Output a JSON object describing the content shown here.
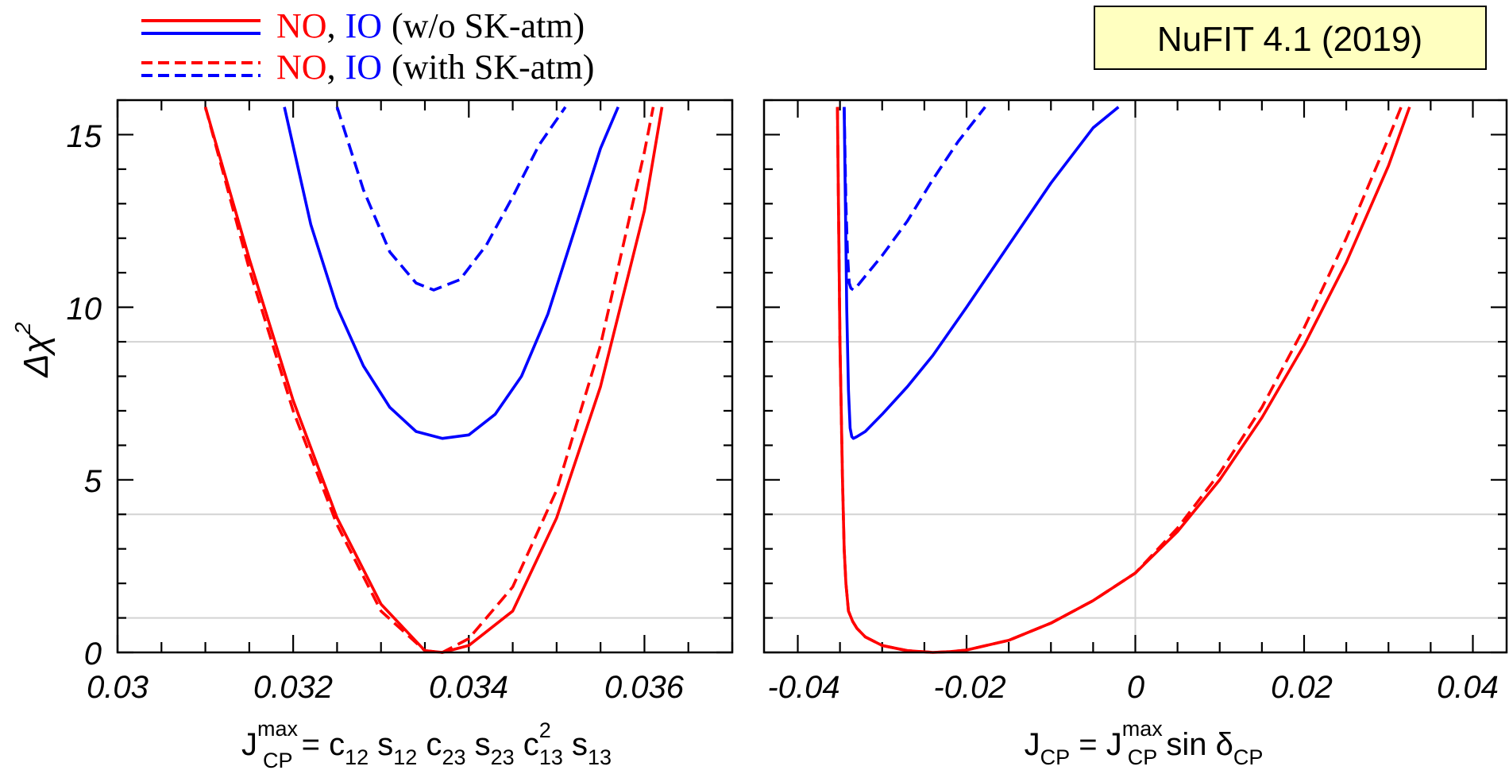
{
  "legend": {
    "row1": {
      "no": "NO",
      "comma": ",",
      "io": "IO",
      "suffix": "(w/o SK-atm)"
    },
    "row2": {
      "no": "NO",
      "comma": ",",
      "io": "IO",
      "suffix": "(with SK-atm)"
    }
  },
  "badge": {
    "label": "NuFIT 4.1 (2019)",
    "fill": "#ffffc0"
  },
  "colors": {
    "no": "#ff0000",
    "io": "#0000ff",
    "grid": "#d3d3d3"
  },
  "y_axis": {
    "label_main": "Δχ",
    "label_sup": "2",
    "ticks": [
      "0",
      "5",
      "10",
      "15"
    ]
  },
  "left_x_axis": {
    "ticks": [
      "0.03",
      "0.032",
      "0.034",
      "0.036"
    ],
    "label": {
      "J": "J",
      "sup": "max",
      "sub": "CP",
      "eq": " = c",
      "s1": "12",
      "p2": " s",
      "s2": "12",
      "p3": " c",
      "s3": "23",
      "p4": " s",
      "s4": "23",
      "p5": " c",
      "s5": "13",
      "sup5": "2",
      "p6": " s",
      "s6": "13"
    }
  },
  "right_x_axis": {
    "ticks": [
      "-0.04",
      "-0.02",
      "0",
      "0.02",
      "0.04"
    ],
    "label": {
      "J": "J",
      "sub1": "CP",
      "eq": " = J",
      "sup": "max",
      "sub2": "CP",
      "sin": " sin ",
      "delta": "δ",
      "sub3": "CP"
    }
  },
  "chart_data": [
    {
      "type": "line",
      "xlim": [
        0.03,
        0.037
      ],
      "ylim": [
        0,
        16
      ],
      "grid_y": [
        1,
        4,
        9
      ],
      "series": [
        {
          "style": "NO-solid",
          "x": [
            0.031,
            0.0315,
            0.032,
            0.0325,
            0.033,
            0.0335,
            0.0337,
            0.034,
            0.0345,
            0.035,
            0.0355,
            0.036,
            0.0362
          ],
          "y": [
            15.8,
            11.4,
            7.3,
            3.9,
            1.4,
            0.05,
            0.0,
            0.2,
            1.2,
            3.9,
            7.7,
            12.8,
            15.8
          ]
        },
        {
          "style": "NO-dashed",
          "x": [
            0.031,
            0.0315,
            0.032,
            0.0325,
            0.033,
            0.0335,
            0.0337,
            0.034,
            0.0345,
            0.035,
            0.0355,
            0.036,
            0.0361
          ],
          "y": [
            15.8,
            11.1,
            7.0,
            3.7,
            1.2,
            0.05,
            0.0,
            0.4,
            1.9,
            4.7,
            8.9,
            14.5,
            15.8
          ]
        },
        {
          "style": "IO-solid",
          "x": [
            0.0319,
            0.0322,
            0.0325,
            0.0328,
            0.0331,
            0.0334,
            0.0337,
            0.034,
            0.0343,
            0.0346,
            0.0349,
            0.0352,
            0.0355,
            0.0357
          ],
          "y": [
            15.8,
            12.4,
            10.0,
            8.3,
            7.1,
            6.4,
            6.2,
            6.3,
            6.9,
            8.0,
            9.8,
            12.2,
            14.6,
            15.8
          ]
        },
        {
          "style": "IO-dashed",
          "x": [
            0.0325,
            0.0328,
            0.0331,
            0.0334,
            0.0336,
            0.0339,
            0.0342,
            0.0345,
            0.0348,
            0.0351
          ],
          "y": [
            15.8,
            13.4,
            11.6,
            10.7,
            10.5,
            10.8,
            11.8,
            13.2,
            14.7,
            15.8
          ]
        }
      ]
    },
    {
      "type": "line",
      "xlim": [
        -0.044,
        0.044
      ],
      "ylim": [
        0,
        16
      ],
      "grid_y": [
        1,
        4,
        9
      ],
      "grid_x": [
        0
      ],
      "series": [
        {
          "style": "NO-solid",
          "x": [
            -0.0353,
            -0.035,
            -0.0347,
            -0.0345,
            -0.0343,
            -0.034,
            -0.0335,
            -0.033,
            -0.032,
            -0.03,
            -0.027,
            -0.024,
            -0.022,
            -0.02,
            -0.015,
            -0.01,
            -0.005,
            0.0,
            0.005,
            0.01,
            0.015,
            0.02,
            0.025,
            0.03,
            0.0325
          ],
          "y": [
            15.8,
            9.0,
            5.0,
            3.0,
            2.0,
            1.2,
            0.9,
            0.7,
            0.45,
            0.2,
            0.05,
            0.0,
            0.02,
            0.07,
            0.35,
            0.85,
            1.5,
            2.3,
            3.5,
            5.0,
            6.8,
            8.9,
            11.3,
            14.1,
            15.8
          ]
        },
        {
          "style": "NO-dashed",
          "x": [
            -0.0353,
            -0.035,
            -0.0347,
            -0.0345,
            -0.0343,
            -0.034,
            -0.0335,
            -0.033,
            -0.032,
            -0.03,
            -0.027,
            -0.024,
            -0.022,
            -0.02,
            -0.015,
            -0.01,
            -0.005,
            0.0,
            0.005,
            0.01,
            0.015,
            0.02,
            0.025,
            0.03,
            0.0315
          ],
          "y": [
            15.8,
            9.0,
            5.0,
            3.0,
            2.0,
            1.2,
            0.9,
            0.7,
            0.45,
            0.2,
            0.05,
            0.0,
            0.02,
            0.07,
            0.35,
            0.85,
            1.5,
            2.3,
            3.6,
            5.2,
            7.1,
            9.4,
            12.0,
            14.9,
            15.8
          ]
        },
        {
          "style": "IO-solid",
          "x": [
            -0.0345,
            -0.0342,
            -0.034,
            -0.0338,
            -0.0336,
            -0.0334,
            -0.033,
            -0.032,
            -0.03,
            -0.027,
            -0.024,
            -0.02,
            -0.015,
            -0.01,
            -0.005,
            -0.002
          ],
          "y": [
            15.8,
            10.0,
            7.6,
            6.5,
            6.25,
            6.2,
            6.25,
            6.4,
            6.9,
            7.7,
            8.6,
            10.0,
            11.8,
            13.6,
            15.2,
            15.8
          ]
        },
        {
          "style": "IO-dashed",
          "x": [
            -0.0345,
            -0.0343,
            -0.0341,
            -0.0339,
            -0.0337,
            -0.0334,
            -0.033,
            -0.032,
            -0.03,
            -0.027,
            -0.024,
            -0.021,
            -0.0178
          ],
          "y": [
            15.8,
            13.0,
            11.5,
            10.7,
            10.55,
            10.5,
            10.6,
            10.9,
            11.5,
            12.5,
            13.7,
            14.8,
            15.8
          ]
        }
      ]
    }
  ]
}
